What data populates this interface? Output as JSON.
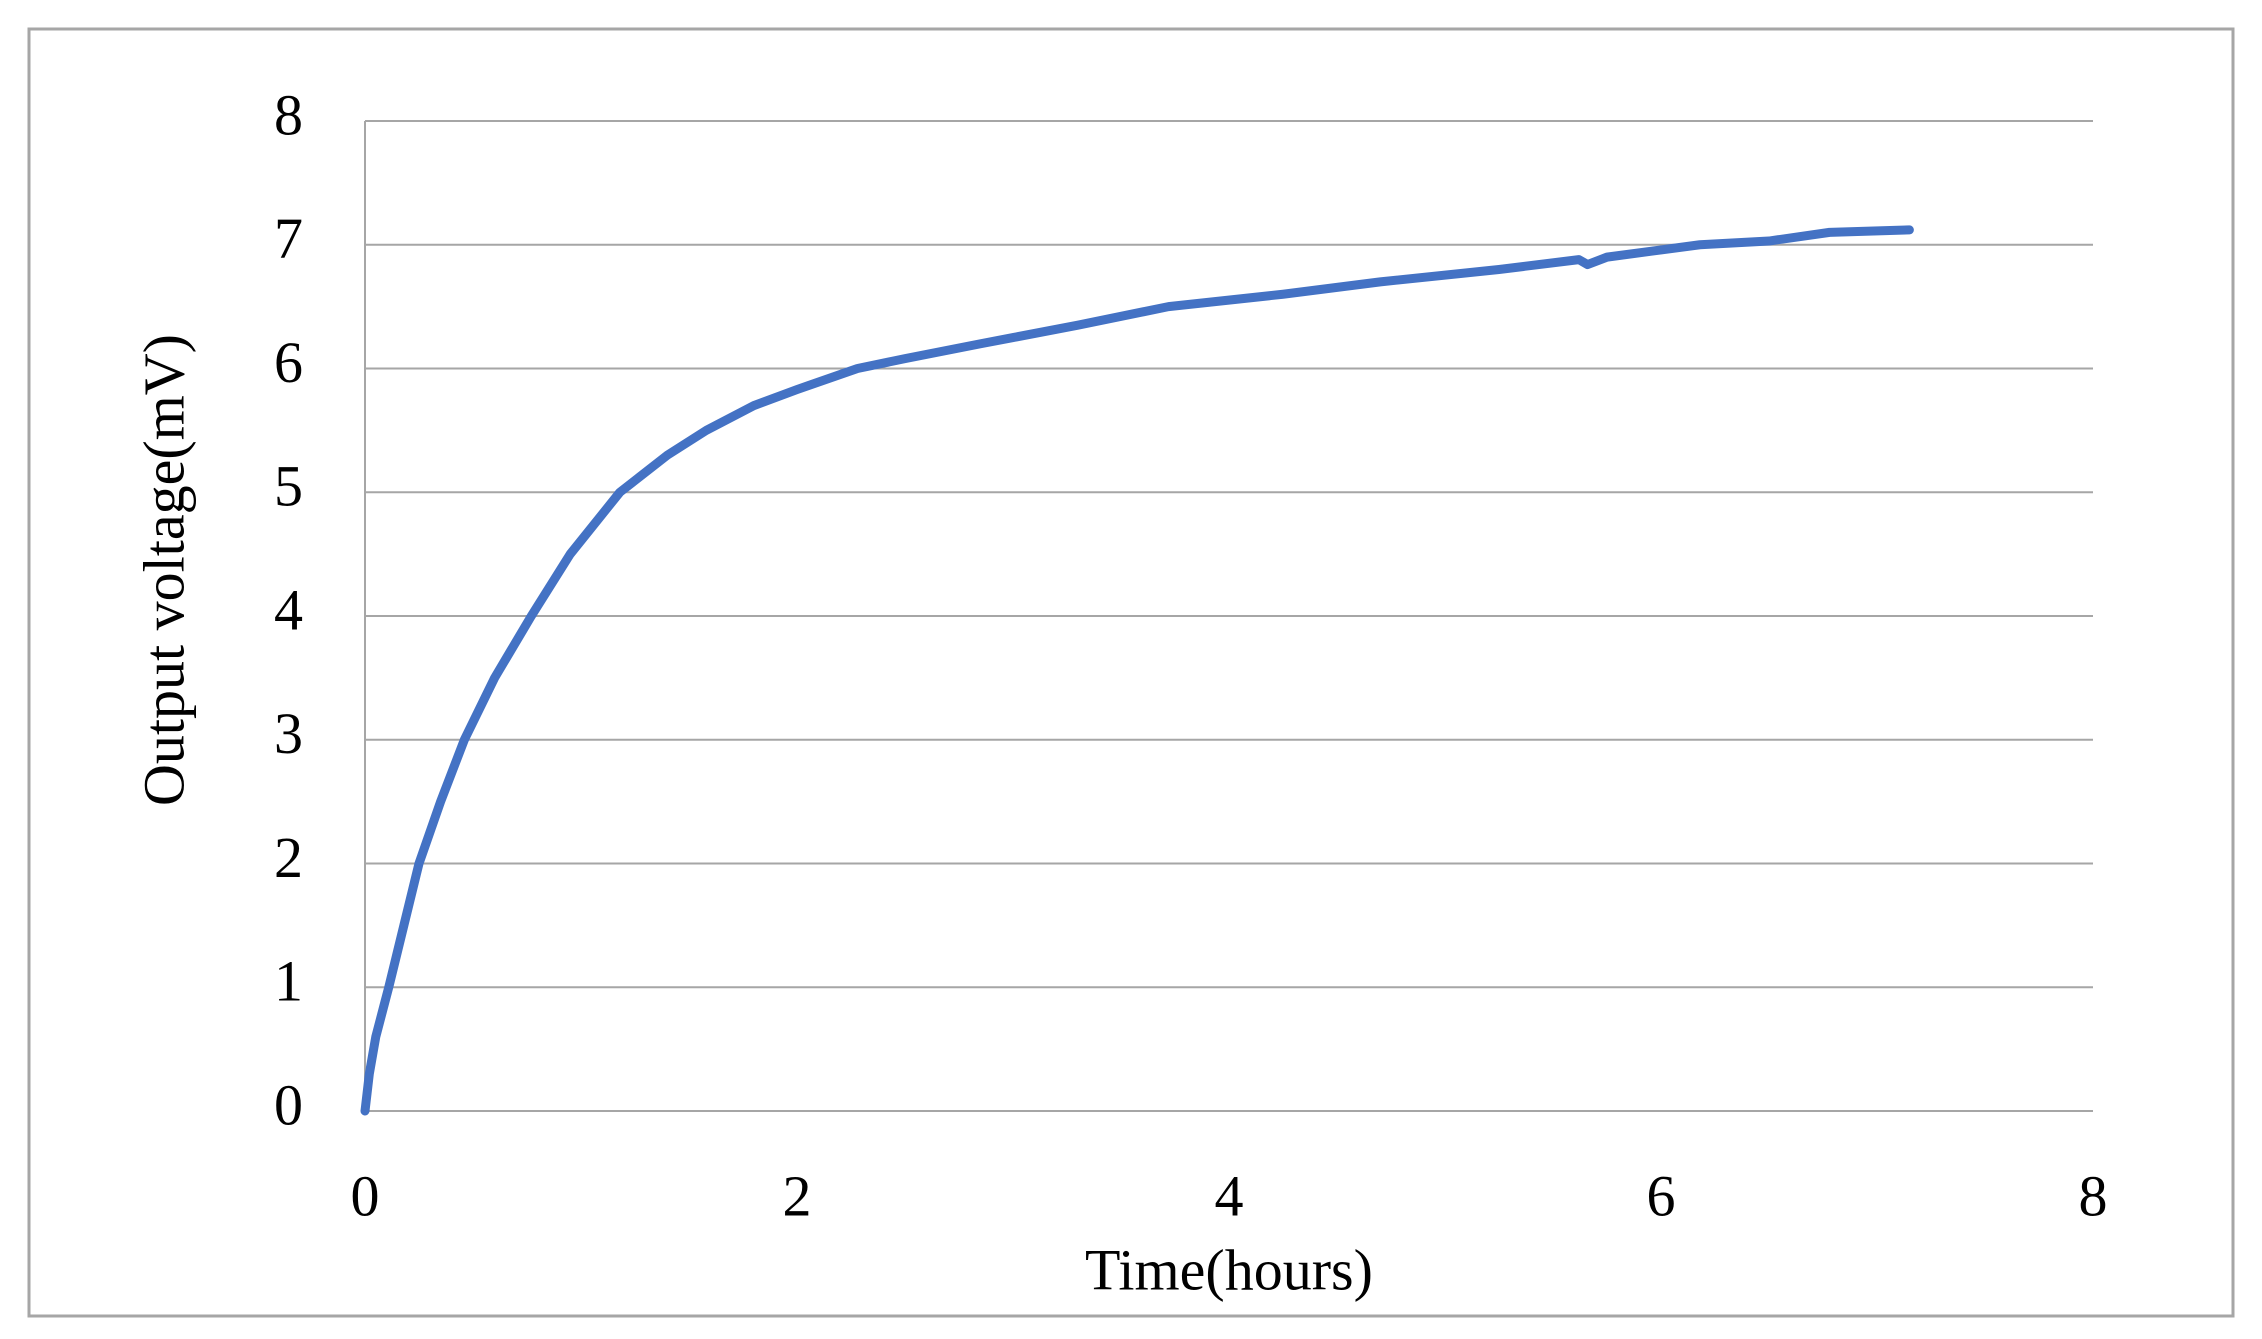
{
  "chart_data": {
    "type": "line",
    "x_label": "Time(hours)",
    "y_label": "Output voltage(mV)",
    "series": [
      {
        "color": "#4472c4",
        "x": [
          0,
          0.02,
          0.05,
          0.11,
          0.18,
          0.25,
          0.35,
          0.46,
          0.6,
          0.77,
          0.95,
          1.18,
          1.4,
          1.58,
          1.8,
          2.0,
          2.28,
          2.5,
          2.85,
          3.0,
          3.3,
          3.72,
          4.25,
          4.7,
          5.25,
          5.62,
          5.66,
          5.75,
          6.18,
          6.5,
          6.78,
          7.15
        ],
        "values": [
          0,
          0.3,
          0.6,
          1.0,
          1.5,
          2.0,
          2.5,
          3.0,
          3.5,
          4.0,
          4.5,
          5.0,
          5.3,
          5.5,
          5.7,
          5.83,
          6.0,
          6.08,
          6.2,
          6.25,
          6.35,
          6.5,
          6.6,
          6.7,
          6.8,
          6.88,
          6.84,
          6.9,
          7.0,
          7.03,
          7.1,
          7.12
        ]
      }
    ],
    "xlim": [
      0,
      8
    ],
    "xticks": [
      0,
      2,
      4,
      6,
      8
    ],
    "ylim": [
      0,
      8
    ],
    "yticks": [
      0,
      1,
      2,
      3,
      4,
      5,
      6,
      7,
      8
    ],
    "grid": true
  }
}
